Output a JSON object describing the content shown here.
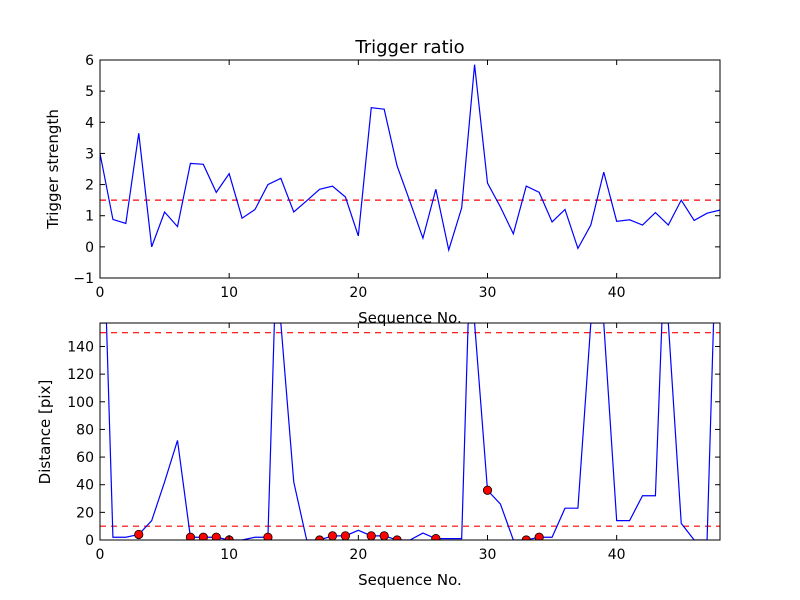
{
  "chart_data": [
    {
      "type": "line",
      "title": "Trigger ratio",
      "xlabel": "Sequence No.",
      "ylabel": "Trigger strength",
      "xlim": [
        0,
        48
      ],
      "ylim": [
        -1,
        6
      ],
      "xticks": [
        "0",
        "10",
        "20",
        "30",
        "40"
      ],
      "yticks": [
        "−1",
        "0",
        "1",
        "2",
        "3",
        "4",
        "5",
        "6"
      ],
      "grid": false,
      "series": [
        {
          "color": "#0000ff",
          "x": [
            0,
            1,
            2,
            3,
            4,
            5,
            6,
            7,
            8,
            9,
            10,
            11,
            12,
            13,
            14,
            15,
            16,
            17,
            18,
            19,
            20,
            21,
            22,
            23,
            24,
            25,
            26,
            27,
            28,
            29,
            30,
            31,
            32,
            33,
            34,
            35,
            36,
            37,
            38,
            39,
            40,
            41,
            42,
            43,
            44,
            45,
            46,
            47,
            48
          ],
          "y": [
            3.0,
            0.88,
            0.75,
            3.65,
            0.0,
            1.12,
            0.65,
            2.68,
            2.65,
            1.75,
            2.35,
            0.92,
            1.2,
            2.0,
            2.2,
            1.12,
            1.48,
            1.85,
            1.95,
            1.6,
            0.35,
            4.47,
            4.42,
            2.6,
            1.45,
            0.28,
            1.85,
            -0.1,
            1.25,
            5.85,
            2.05,
            1.28,
            0.42,
            1.95,
            1.75,
            0.8,
            1.2,
            -0.05,
            0.7,
            2.4,
            0.82,
            0.87,
            0.7,
            1.1,
            0.7,
            1.5,
            0.85,
            1.08,
            1.18
          ]
        }
      ],
      "threshold": {
        "value": 1.5,
        "color": "#ff0000",
        "style": "dashed"
      }
    },
    {
      "type": "line",
      "title": "",
      "xlabel": "Sequence No.",
      "ylabel": "Distance [pix]",
      "xlim": [
        0,
        48
      ],
      "ylim": [
        0,
        157
      ],
      "xticks": [
        "0",
        "10",
        "20",
        "30",
        "40"
      ],
      "yticks": [
        "0",
        "20",
        "40",
        "60",
        "80",
        "100",
        "120",
        "140"
      ],
      "grid": false,
      "series": [
        {
          "color": "#0000ff",
          "x": [
            0,
            0.5,
            1,
            2,
            3,
            4,
            5,
            6,
            7,
            8,
            9,
            10,
            11,
            12,
            13,
            13.5,
            14,
            15,
            16,
            17,
            18,
            19,
            20,
            21,
            22,
            23,
            24,
            25,
            26,
            27,
            28,
            28.5,
            29,
            30,
            31,
            32,
            33,
            34,
            35,
            36,
            37,
            38,
            39,
            40,
            41,
            42,
            43,
            43.5,
            44,
            45,
            46,
            47,
            47.5
          ],
          "y": [
            157,
            157,
            2,
            2,
            4,
            14,
            42,
            72,
            2,
            2,
            2,
            0,
            0,
            2,
            2,
            157,
            157,
            42,
            0,
            0,
            3,
            3,
            7,
            3,
            3,
            0,
            0,
            5,
            1,
            1,
            1,
            157,
            157,
            36,
            26,
            0,
            0,
            2,
            2,
            23,
            23,
            157,
            157,
            14,
            14,
            32,
            32,
            157,
            157,
            12,
            0,
            0,
            157
          ]
        }
      ],
      "markers": {
        "color": "#ff0000",
        "x": [
          3,
          7,
          8,
          9,
          10,
          13,
          17,
          18,
          19,
          21,
          22,
          23,
          26,
          30,
          33,
          34
        ],
        "y": [
          4,
          2,
          2,
          2,
          0,
          2,
          0,
          3,
          3,
          3,
          3,
          0,
          1,
          36,
          0,
          2
        ]
      },
      "thresholds": [
        {
          "value": 150,
          "color": "#ff0000",
          "style": "dashed"
        },
        {
          "value": 10,
          "color": "#ff0000",
          "style": "dashed"
        }
      ]
    }
  ]
}
